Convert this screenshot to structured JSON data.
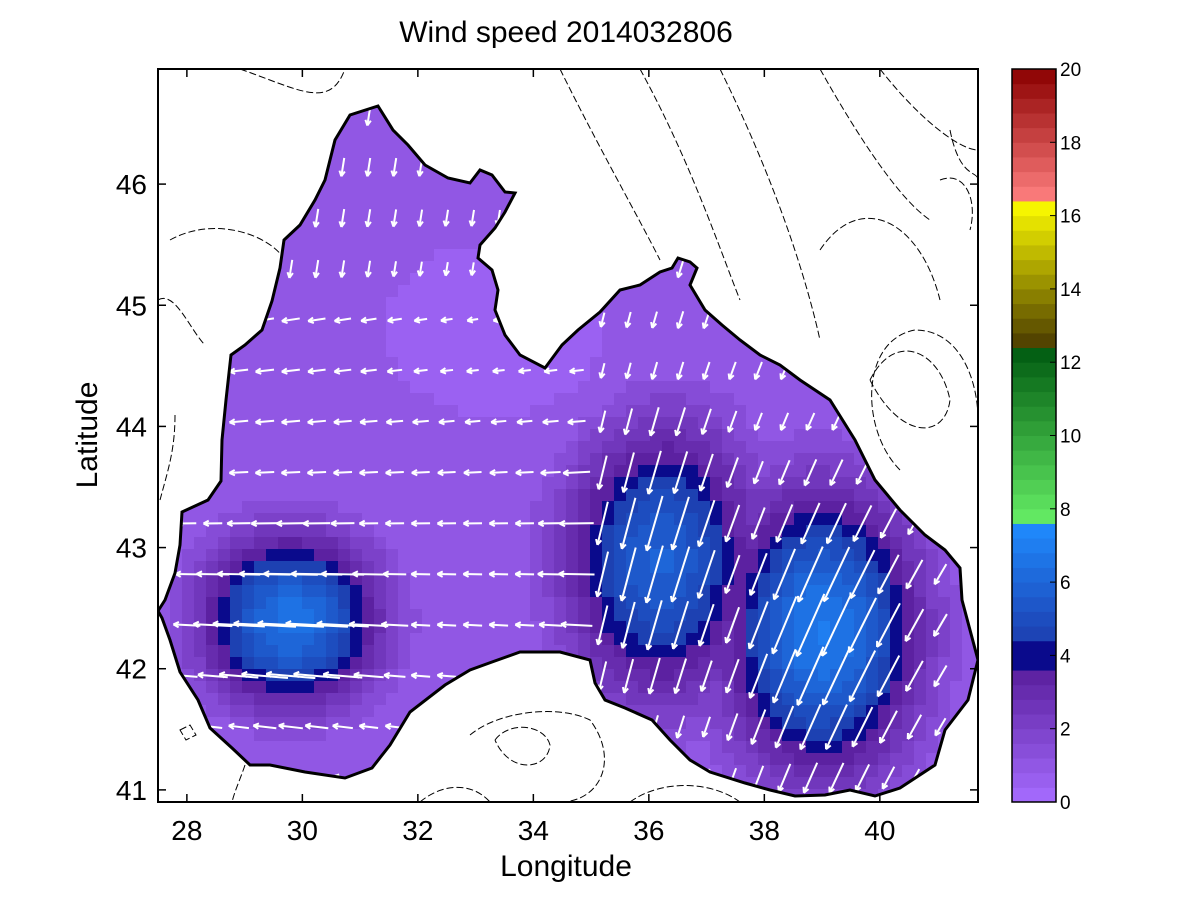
{
  "chart_data": {
    "type": "heatmap",
    "title": "Wind speed 2014032806",
    "xlabel": "Longitude",
    "ylabel": "Latitude",
    "xlim": [
      27.5,
      41.7
    ],
    "ylim": [
      40.9,
      46.95
    ],
    "xticks": [
      28,
      30,
      32,
      34,
      36,
      38,
      40
    ],
    "yticks": [
      41,
      42,
      43,
      44,
      45,
      46
    ],
    "colorbar": {
      "min": 0,
      "max": 20,
      "ticks": [
        0,
        2,
        4,
        6,
        8,
        10,
        12,
        14,
        16,
        18,
        20
      ],
      "bands": [
        {
          "from": 0,
          "to": 3.6,
          "color_low": "#a66cff",
          "color_high": "#5a1f9e"
        },
        {
          "from": 3.6,
          "to": 4.4,
          "color_low": "#0a0a8c",
          "color_high": "#0a0a8c"
        },
        {
          "from": 4.4,
          "to": 7.6,
          "color_low": "#1d3fb0",
          "color_high": "#1f8cff"
        },
        {
          "from": 7.6,
          "to": 12.4,
          "color_low": "#66ee66",
          "color_high": "#005a10"
        },
        {
          "from": 12.4,
          "to": 16.4,
          "color_low": "#4a3a00",
          "color_high": "#ffff00"
        },
        {
          "from": 16.4,
          "to": 20,
          "color_low": "#ff8080",
          "color_high": "#8b0000"
        }
      ]
    },
    "wind_max": [
      {
        "lon": 29.8,
        "lat": 42.4,
        "speed": 6.5
      },
      {
        "lon": 39.0,
        "lat": 42.3,
        "speed": 6.8
      },
      {
        "lon": 36.2,
        "lat": 42.9,
        "speed": 5.8
      }
    ],
    "wind_min": {
      "lon": 33.3,
      "lat": 44.8,
      "speed": 0.4
    },
    "prevailing_wind": "easterly to north-westerly"
  },
  "colors": {
    "land": "#ffffff",
    "coast": "#000000",
    "arrow": "#ffffff",
    "contour": "#000000"
  }
}
